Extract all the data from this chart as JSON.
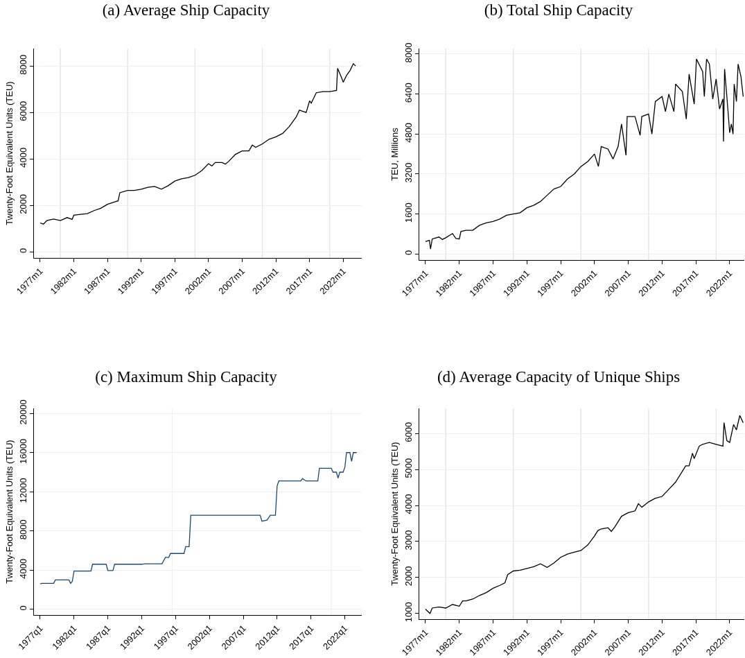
{
  "chart_data": [
    {
      "type": "line",
      "title": "(a) Average Ship Capacity",
      "ylabel": "Twenty-Foot Equivalent Units (TEU)",
      "grid": "y",
      "marker": "none",
      "line_style": "solid",
      "xlim": [
        "1976-02",
        "2024-10"
      ],
      "ylim": [
        -256,
        8750
      ],
      "yticks": [
        0,
        2000,
        4000,
        6000,
        8000
      ],
      "xticks": [
        {
          "value": "1977-01",
          "label": "1977m1"
        },
        {
          "value": "1982-01",
          "label": "1982m1"
        },
        {
          "value": "1987-01",
          "label": "1987m1"
        },
        {
          "value": "1992-01",
          "label": "1992m1"
        },
        {
          "value": "1997-01",
          "label": "1997m1"
        },
        {
          "value": "2002-01",
          "label": "2002m1"
        },
        {
          "value": "2007-01",
          "label": "2007m1"
        },
        {
          "value": "2012-01",
          "label": "2012m1"
        },
        {
          "value": "2017-01",
          "label": "2017m1"
        },
        {
          "value": "2022-01",
          "label": "2022m1"
        }
      ],
      "ref_lines": [
        {
          "axis": "x",
          "value": "1980-01",
          "color": "#dfe3e3"
        },
        {
          "axis": "x",
          "value": "1990-01",
          "color": "#dfe3e3"
        },
        {
          "axis": "x",
          "value": "2000-01",
          "color": "#dfe3e3"
        },
        {
          "axis": "x",
          "value": "2010-01",
          "color": "#dfe3e3"
        },
        {
          "axis": "x",
          "value": "2020-01",
          "color": "#dfe3e3"
        }
      ],
      "x": [
        "1977-01",
        "1977-07",
        "1978-01",
        "1979-01",
        "1980-01",
        "1981-01",
        "1981-10",
        "1982-01",
        "1983-01",
        "1984-01",
        "1985-01",
        "1986-01",
        "1987-01",
        "1988-01",
        "1988-08",
        "1988-11",
        "1990-01",
        "1991-01",
        "1992-01",
        "1993-01",
        "1994-01",
        "1995-01",
        "1996-01",
        "1997-01",
        "1998-01",
        "1999-01",
        "2000-01",
        "2001-01",
        "2002-01",
        "2002-07",
        "2003-01",
        "2004-01",
        "2004-07",
        "2005-01",
        "2006-01",
        "2007-01",
        "2008-01",
        "2008-07",
        "2009-01",
        "2010-01",
        "2011-01",
        "2012-01",
        "2013-01",
        "2014-01",
        "2015-01",
        "2015-07",
        "2016-01",
        "2016-07",
        "2017-01",
        "2017-04",
        "2018-01",
        "2019-01",
        "2020-01",
        "2021-01",
        "2021-03",
        "2021-10",
        "2022-01",
        "2022-07",
        "2023-01",
        "2023-07",
        "2023-11"
      ],
      "series": [
        {
          "color": "#000000",
          "values": [
            1250,
            1200,
            1350,
            1420,
            1350,
            1480,
            1400,
            1580,
            1620,
            1650,
            1780,
            1880,
            2050,
            2150,
            2200,
            2550,
            2650,
            2650,
            2700,
            2780,
            2820,
            2700,
            2850,
            3050,
            3150,
            3200,
            3300,
            3500,
            3800,
            3700,
            3850,
            3850,
            3780,
            3900,
            4200,
            4350,
            4350,
            4600,
            4500,
            4650,
            4850,
            4950,
            5100,
            5400,
            5800,
            6100,
            6050,
            6000,
            6500,
            6400,
            6850,
            6900,
            6900,
            6950,
            7900,
            7500,
            7300,
            7600,
            7800,
            8100,
            8000
          ]
        }
      ]
    },
    {
      "type": "line",
      "title": "(b) Total Ship Capacity",
      "ylabel": "TEU, Millions",
      "grid": "y",
      "marker": "none",
      "line_style": "solid",
      "xlim": [
        "1976-02",
        "2024-03"
      ],
      "ylim": [
        -240,
        8220
      ],
      "yticks": [
        0,
        1600,
        3200,
        4800,
        6400,
        8000
      ],
      "xticks": [
        {
          "value": "1977-01",
          "label": "1977m1"
        },
        {
          "value": "1982-01",
          "label": "1982m1"
        },
        {
          "value": "1987-01",
          "label": "1987m1"
        },
        {
          "value": "1992-01",
          "label": "1992m1"
        },
        {
          "value": "1997-01",
          "label": "1997m1"
        },
        {
          "value": "2002-01",
          "label": "2002m1"
        },
        {
          "value": "2007-01",
          "label": "2007m1"
        },
        {
          "value": "2012-01",
          "label": "2012m1"
        },
        {
          "value": "2017-01",
          "label": "2017m1"
        },
        {
          "value": "2022-01",
          "label": "2022m1"
        }
      ],
      "ref_lines": [
        {
          "axis": "x",
          "value": "1980-01",
          "color": "#dfe3e3"
        },
        {
          "axis": "x",
          "value": "1990-01",
          "color": "#dfe3e3"
        },
        {
          "axis": "x",
          "value": "2000-01",
          "color": "#dfe3e3"
        },
        {
          "axis": "x",
          "value": "2010-01",
          "color": "#dfe3e3"
        },
        {
          "axis": "x",
          "value": "2020-01",
          "color": "#dfe3e3"
        }
      ],
      "x": [
        "1977-01",
        "1977-08",
        "1977-10",
        "1978-01",
        "1979-01",
        "1979-07",
        "1980-01",
        "1981-01",
        "1981-07",
        "1982-01",
        "1982-04",
        "1983-01",
        "1984-01",
        "1985-01",
        "1986-01",
        "1987-01",
        "1988-01",
        "1989-01",
        "1990-01",
        "1991-01",
        "1992-01",
        "1993-01",
        "1994-01",
        "1995-01",
        "1996-01",
        "1997-01",
        "1998-01",
        "1999-01",
        "2000-01",
        "2001-01",
        "2002-01",
        "2002-08",
        "2003-01",
        "2004-01",
        "2004-10",
        "2005-07",
        "2006-01",
        "2006-09",
        "2006-11",
        "2008-01",
        "2008-10",
        "2009-01",
        "2010-01",
        "2010-07",
        "2011-01",
        "2012-01",
        "2012-07",
        "2013-01",
        "2013-10",
        "2014-01",
        "2015-01",
        "2015-08",
        "2016-01",
        "2016-10",
        "2017-02",
        "2018-01",
        "2018-04",
        "2018-08",
        "2019-01",
        "2019-07",
        "2020-01",
        "2020-07",
        "2021-01",
        "2021-02",
        "2021-04",
        "2021-08",
        "2022-01",
        "2022-04",
        "2022-07",
        "2022-09",
        "2023-01",
        "2023-04",
        "2023-09",
        "2024-01"
      ],
      "series": [
        {
          "color": "#000000",
          "values": [
            500,
            550,
            200,
            600,
            680,
            580,
            650,
            820,
            620,
            600,
            900,
            950,
            950,
            1150,
            1250,
            1300,
            1400,
            1550,
            1600,
            1650,
            1850,
            1950,
            2100,
            2350,
            2600,
            2700,
            3000,
            3200,
            3500,
            3700,
            4000,
            3500,
            4300,
            4200,
            3800,
            4300,
            5200,
            3950,
            5500,
            5500,
            4750,
            5500,
            5600,
            4800,
            6100,
            6300,
            5700,
            6400,
            5700,
            6800,
            6500,
            5400,
            7200,
            6000,
            7800,
            7300,
            6300,
            7800,
            7600,
            6200,
            7000,
            5800,
            6200,
            4500,
            7400,
            6300,
            4850,
            5200,
            4800,
            6800,
            6100,
            7600,
            7100,
            6300
          ]
        }
      ]
    },
    {
      "type": "line",
      "title": "(c) Maximum Ship Capacity",
      "ylabel": "Twenty-Foot Equivalent Units (TEU)",
      "grid": "y",
      "marker": "none",
      "line_style": "solid",
      "xlim": [
        "1976-02",
        "2024-07"
      ],
      "ylim": [
        -585,
        20515
      ],
      "yticks": [
        0,
        4000,
        8000,
        12000,
        16000,
        20000
      ],
      "xticks": [
        {
          "value": "1977-01",
          "label": "1977q1"
        },
        {
          "value": "1982-01",
          "label": "1982q1"
        },
        {
          "value": "1987-01",
          "label": "1987q1"
        },
        {
          "value": "1992-01",
          "label": "1992q1"
        },
        {
          "value": "1997-01",
          "label": "1997q1"
        },
        {
          "value": "2002-01",
          "label": "2002q1"
        },
        {
          "value": "2007-01",
          "label": "2007q1"
        },
        {
          "value": "2012-01",
          "label": "2012q1"
        },
        {
          "value": "2017-01",
          "label": "2017q1"
        },
        {
          "value": "2022-01",
          "label": "2022q1"
        }
      ],
      "ref_lines": [
        {
          "axis": "x",
          "value": "1996-07",
          "color": "#eef1f1"
        },
        {
          "axis": "x",
          "value": "2020-01",
          "color": "#eef1f1"
        }
      ],
      "x": [
        "1977-01",
        "1977-04",
        "1979-01",
        "1979-04",
        "1981-04",
        "1981-07",
        "1981-10",
        "1982-01",
        "1984-07",
        "1984-10",
        "1986-10",
        "1987-01",
        "1987-10",
        "1988-01",
        "1992-01",
        "1992-07",
        "1995-01",
        "1995-07",
        "1996-01",
        "1996-04",
        "1998-04",
        "1998-07",
        "1999-01",
        "1999-04",
        "2009-07",
        "2009-10",
        "2010-07",
        "2011-01",
        "2011-10",
        "2012-01",
        "2012-04",
        "2015-07",
        "2015-10",
        "2016-04",
        "2018-01",
        "2018-04",
        "2020-01",
        "2020-04",
        "2020-10",
        "2021-01",
        "2021-04",
        "2021-10",
        "2022-01",
        "2022-04",
        "2022-10",
        "2023-01",
        "2023-04",
        "2023-10"
      ],
      "series": [
        {
          "color": "#1a476f",
          "values": [
            2600,
            2650,
            2650,
            3000,
            3000,
            2650,
            2850,
            3900,
            3900,
            4600,
            4600,
            3950,
            3950,
            4600,
            4600,
            4650,
            4650,
            5300,
            5300,
            5700,
            5700,
            6400,
            6400,
            9600,
            9600,
            9000,
            9100,
            9600,
            9600,
            12600,
            13100,
            13100,
            13350,
            13100,
            13100,
            14400,
            14400,
            14000,
            14000,
            13400,
            14000,
            14000,
            14500,
            16000,
            16000,
            15100,
            16000,
            16000
          ]
        }
      ]
    },
    {
      "type": "line",
      "title": "(d) Average Capacity of Unique Ships",
      "ylabel": "Twenty-Foot Equivalent Units (TEU)",
      "grid": "y",
      "marker": "none",
      "line_style": "solid",
      "xlim": [
        "1976-02",
        "2024-03"
      ],
      "ylim": [
        841,
        6697
      ],
      "yticks": [
        1000,
        2000,
        3000,
        4000,
        5000,
        6000
      ],
      "xticks": [
        {
          "value": "1977-01",
          "label": "1977m1"
        },
        {
          "value": "1982-01",
          "label": "1982m1"
        },
        {
          "value": "1987-01",
          "label": "1987m1"
        },
        {
          "value": "1992-01",
          "label": "1992m1"
        },
        {
          "value": "1997-01",
          "label": "1997m1"
        },
        {
          "value": "2002-01",
          "label": "2002m1"
        },
        {
          "value": "2007-01",
          "label": "2007m1"
        },
        {
          "value": "2012-01",
          "label": "2012m1"
        },
        {
          "value": "2017-01",
          "label": "2017m1"
        },
        {
          "value": "2022-01",
          "label": "2022m1"
        }
      ],
      "ref_lines": [
        {
          "axis": "x",
          "value": "1980-01",
          "color": "#dfe3e3"
        },
        {
          "axis": "x",
          "value": "1990-01",
          "color": "#dfe3e3"
        },
        {
          "axis": "x",
          "value": "2000-01",
          "color": "#dfe3e3"
        },
        {
          "axis": "x",
          "value": "2010-01",
          "color": "#dfe3e3"
        },
        {
          "axis": "x",
          "value": "2020-01",
          "color": "#dfe3e3"
        }
      ],
      "x": [
        "1977-01",
        "1977-09",
        "1978-01",
        "1979-01",
        "1980-01",
        "1981-01",
        "1982-01",
        "1982-07",
        "1983-01",
        "1984-01",
        "1985-01",
        "1986-01",
        "1987-01",
        "1988-01",
        "1988-10",
        "1989-03",
        "1990-01",
        "1991-01",
        "1992-01",
        "1993-01",
        "1994-01",
        "1995-01",
        "1996-01",
        "1997-01",
        "1998-01",
        "1999-01",
        "2000-01",
        "2001-01",
        "2002-01",
        "2002-07",
        "2003-01",
        "2004-01",
        "2004-07",
        "2005-01",
        "2006-01",
        "2007-01",
        "2008-01",
        "2008-07",
        "2009-01",
        "2010-01",
        "2011-01",
        "2012-01",
        "2013-01",
        "2014-01",
        "2015-01",
        "2015-07",
        "2016-01",
        "2016-07",
        "2016-10",
        "2017-07",
        "2018-01",
        "2019-01",
        "2020-01",
        "2021-01",
        "2021-03",
        "2021-08",
        "2022-01",
        "2022-08",
        "2023-01",
        "2023-07",
        "2024-01"
      ],
      "series": [
        {
          "color": "#000000",
          "values": [
            1120,
            1000,
            1150,
            1180,
            1150,
            1250,
            1200,
            1350,
            1350,
            1400,
            1500,
            1580,
            1700,
            1780,
            1850,
            2080,
            2180,
            2200,
            2250,
            2300,
            2380,
            2280,
            2400,
            2560,
            2650,
            2700,
            2750,
            2900,
            3150,
            3300,
            3350,
            3380,
            3280,
            3400,
            3700,
            3800,
            3850,
            4050,
            3950,
            4100,
            4200,
            4250,
            4450,
            4650,
            4950,
            5100,
            5100,
            5450,
            5300,
            5650,
            5700,
            5750,
            5700,
            5650,
            6300,
            5800,
            5750,
            6250,
            6100,
            6500,
            6300
          ]
        }
      ]
    }
  ]
}
